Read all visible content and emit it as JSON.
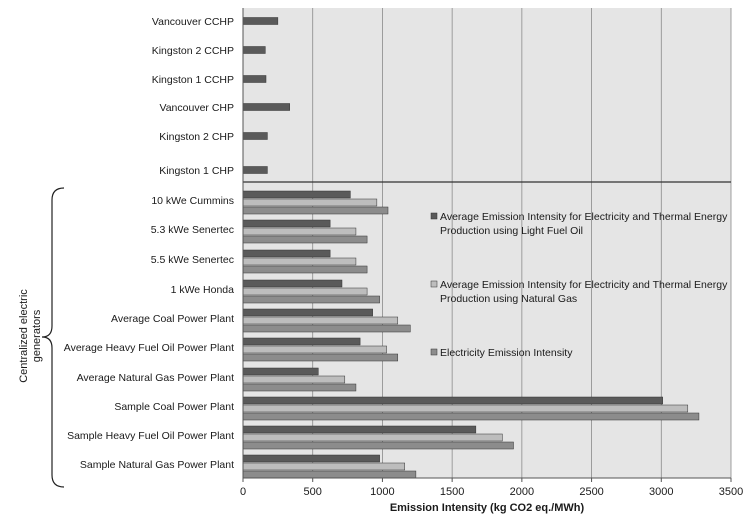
{
  "chart_data": {
    "type": "bar",
    "orientation": "horizontal",
    "xlabel": "Emission Intensity (kg CO2 eq./MWh)",
    "xlim": [
      0,
      3500
    ],
    "x_ticks": [
      0,
      500,
      1000,
      1500,
      2000,
      2500,
      3000,
      3500
    ],
    "grid": "vertical",
    "legend_position": "right-middle",
    "group_label": "Centralized electric generators",
    "categories": [
      "Vancouver CCHP",
      "Kingston 2 CCHP",
      "Kingston 1 CCHP",
      "Vancouver CHP",
      "Kingston 2 CHP",
      "Kingston 1 CHP",
      "10 kWe Cummins",
      "5.3 kWe Senertec",
      "5.5 kWe Senertec",
      "1 kWe Honda",
      "Average Coal Power Plant",
      "Average Heavy Fuel Oil Power Plant",
      "Average Natural Gas Power Plant",
      "Sample Coal Power Plant",
      "Sample Heavy Fuel Oil Power Plant",
      "Sample Natural Gas Power Plant"
    ],
    "series": [
      {
        "name": "Average Emission Intensity for Electricity and Thermal Energy Production using Light Fuel Oil",
        "color": "#5a5a5a",
        "values": [
          250,
          160,
          165,
          335,
          175,
          175,
          770,
          625,
          625,
          710,
          930,
          840,
          540,
          3010,
          1670,
          980
        ]
      },
      {
        "name": "Average Emission Intensity for Electricity and Thermal Energy Production using Natural Gas",
        "color": "#bdbdbd",
        "values": [
          null,
          null,
          null,
          null,
          null,
          null,
          960,
          810,
          810,
          890,
          1110,
          1030,
          730,
          3190,
          1860,
          1160
        ]
      },
      {
        "name": "Electricity Emission Intensity",
        "color": "#8c8c8c",
        "values": [
          null,
          null,
          null,
          null,
          null,
          null,
          1040,
          890,
          890,
          980,
          1200,
          1110,
          810,
          3270,
          1940,
          1240
        ]
      }
    ]
  }
}
